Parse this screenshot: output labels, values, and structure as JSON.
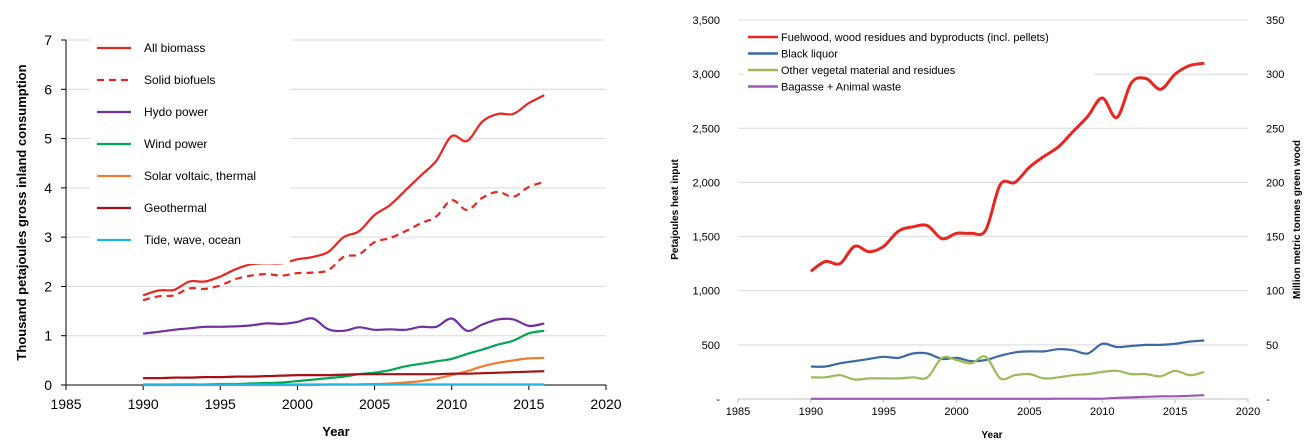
{
  "chart_data": [
    {
      "type": "line",
      "title": "",
      "xlabel": "Year",
      "ylabel": "Thousand petajoules gross inland consumption",
      "xlim": [
        1985,
        2020
      ],
      "ylim": [
        0,
        7
      ],
      "xticks": [
        1985,
        1990,
        1995,
        2000,
        2005,
        2010,
        2015,
        2020
      ],
      "yticks": [
        0,
        1,
        2,
        3,
        4,
        5,
        6,
        7
      ],
      "grid": "horizontal",
      "legend": "top-left",
      "x": [
        1990,
        1991,
        1992,
        1993,
        1994,
        1995,
        1996,
        1997,
        1998,
        1999,
        2000,
        2001,
        2002,
        2003,
        2004,
        2005,
        2006,
        2007,
        2008,
        2009,
        2010,
        2011,
        2012,
        2013,
        2014,
        2015,
        2016
      ],
      "series": [
        {
          "name": "All biomass",
          "color": "#e8251f",
          "dash": "solid",
          "values": [
            1.82,
            1.92,
            1.93,
            2.1,
            2.1,
            2.2,
            2.35,
            2.45,
            2.47,
            2.47,
            2.55,
            2.6,
            2.7,
            3.0,
            3.12,
            3.45,
            3.65,
            3.95,
            4.25,
            4.55,
            5.05,
            4.95,
            5.35,
            5.5,
            5.5,
            5.72,
            5.88
          ]
        },
        {
          "name": "Solid biofuels",
          "color": "#e8251f",
          "dash": "dashed",
          "values": [
            1.72,
            1.8,
            1.82,
            1.96,
            1.95,
            2.02,
            2.15,
            2.22,
            2.25,
            2.22,
            2.27,
            2.28,
            2.33,
            2.6,
            2.65,
            2.9,
            2.98,
            3.12,
            3.28,
            3.42,
            3.75,
            3.55,
            3.8,
            3.92,
            3.82,
            4.02,
            4.12
          ]
        },
        {
          "name": "Hydo power",
          "color": "#7030a0",
          "dash": "solid",
          "values": [
            1.04,
            1.08,
            1.12,
            1.15,
            1.18,
            1.18,
            1.19,
            1.21,
            1.25,
            1.24,
            1.28,
            1.35,
            1.13,
            1.1,
            1.17,
            1.12,
            1.13,
            1.12,
            1.18,
            1.18,
            1.35,
            1.1,
            1.23,
            1.33,
            1.33,
            1.2,
            1.25
          ]
        },
        {
          "name": "Wind power",
          "color": "#00a651",
          "dash": "solid",
          "values": [
            0.0,
            0.0,
            0.01,
            0.01,
            0.01,
            0.02,
            0.02,
            0.03,
            0.04,
            0.05,
            0.08,
            0.11,
            0.14,
            0.17,
            0.22,
            0.25,
            0.3,
            0.38,
            0.43,
            0.48,
            0.53,
            0.63,
            0.72,
            0.82,
            0.9,
            1.05,
            1.1
          ]
        },
        {
          "name": "Solar voltaic, thermal",
          "color": "#ed7d31",
          "dash": "solid",
          "values": [
            0.0,
            0.0,
            0.0,
            0.0,
            0.0,
            0.0,
            0.0,
            0.0,
            0.0,
            0.0,
            0.0,
            0.0,
            0.01,
            0.01,
            0.01,
            0.02,
            0.03,
            0.05,
            0.08,
            0.13,
            0.2,
            0.28,
            0.38,
            0.45,
            0.5,
            0.54,
            0.55
          ]
        },
        {
          "name": "Geothermal",
          "color": "#a50f15",
          "dash": "solid",
          "values": [
            0.14,
            0.14,
            0.15,
            0.15,
            0.16,
            0.16,
            0.17,
            0.17,
            0.18,
            0.19,
            0.2,
            0.2,
            0.2,
            0.21,
            0.22,
            0.22,
            0.22,
            0.22,
            0.22,
            0.22,
            0.23,
            0.23,
            0.24,
            0.25,
            0.26,
            0.27,
            0.28
          ]
        },
        {
          "name": "Tide, wave, ocean",
          "color": "#1fb5e6",
          "dash": "solid",
          "values": [
            0.01,
            0.01,
            0.01,
            0.01,
            0.01,
            0.01,
            0.01,
            0.01,
            0.01,
            0.01,
            0.01,
            0.01,
            0.01,
            0.01,
            0.01,
            0.01,
            0.01,
            0.01,
            0.01,
            0.01,
            0.01,
            0.01,
            0.01,
            0.01,
            0.01,
            0.01,
            0.01
          ]
        }
      ]
    },
    {
      "type": "line",
      "title": "",
      "xlabel": "Year",
      "ylabel": "Petajoules heat input",
      "y2label": "Million metric tonnes green wood",
      "xlim": [
        1985,
        2020
      ],
      "ylim": [
        0,
        3500
      ],
      "y2lim": [
        0,
        350
      ],
      "xticks": [
        1985,
        1990,
        1995,
        2000,
        2005,
        2010,
        2015,
        2020
      ],
      "yticks": [
        "-",
        "500",
        "1,000",
        "1,500",
        "2,000",
        "2,500",
        "3,000",
        "3,500"
      ],
      "y2ticks": [
        "-",
        "50",
        "100",
        "150",
        "200",
        "250",
        "300",
        "350"
      ],
      "grid": "horizontal",
      "legend": "top-left",
      "x": [
        1990,
        1991,
        1992,
        1993,
        1994,
        1995,
        1996,
        1997,
        1998,
        1999,
        2000,
        2001,
        2002,
        2003,
        2004,
        2005,
        2006,
        2007,
        2008,
        2009,
        2010,
        2011,
        2012,
        2013,
        2014,
        2015,
        2016,
        2017
      ],
      "series": [
        {
          "name": "Fuelwood, wood residues and byproducts (incl. pellets)",
          "color": "#e8251f",
          "values": [
            1180,
            1270,
            1250,
            1410,
            1360,
            1410,
            1550,
            1590,
            1600,
            1480,
            1530,
            1530,
            1560,
            1980,
            2000,
            2140,
            2240,
            2330,
            2470,
            2610,
            2780,
            2600,
            2920,
            2960,
            2860,
            3000,
            3080,
            3100
          ]
        },
        {
          "name": "Black liquor",
          "color": "#3a6aa0",
          "values": [
            300,
            300,
            330,
            350,
            370,
            390,
            380,
            420,
            420,
            370,
            380,
            350,
            360,
            400,
            430,
            440,
            440,
            460,
            450,
            420,
            510,
            480,
            490,
            500,
            500,
            510,
            530,
            540
          ]
        },
        {
          "name": "Other vegetal material and residues",
          "color": "#9bbb59",
          "values": [
            200,
            200,
            220,
            180,
            190,
            190,
            190,
            200,
            200,
            380,
            360,
            330,
            390,
            190,
            220,
            230,
            190,
            200,
            220,
            230,
            250,
            260,
            230,
            230,
            210,
            260,
            220,
            250
          ]
        },
        {
          "name": "Bagasse + Animal waste",
          "color": "#9b59b6",
          "values": [
            2,
            2,
            2,
            2,
            2,
            2,
            2,
            2,
            2,
            2,
            2,
            2,
            2,
            2,
            2,
            2,
            2,
            3,
            3,
            3,
            3,
            10,
            15,
            20,
            25,
            25,
            30,
            35
          ]
        }
      ]
    }
  ]
}
